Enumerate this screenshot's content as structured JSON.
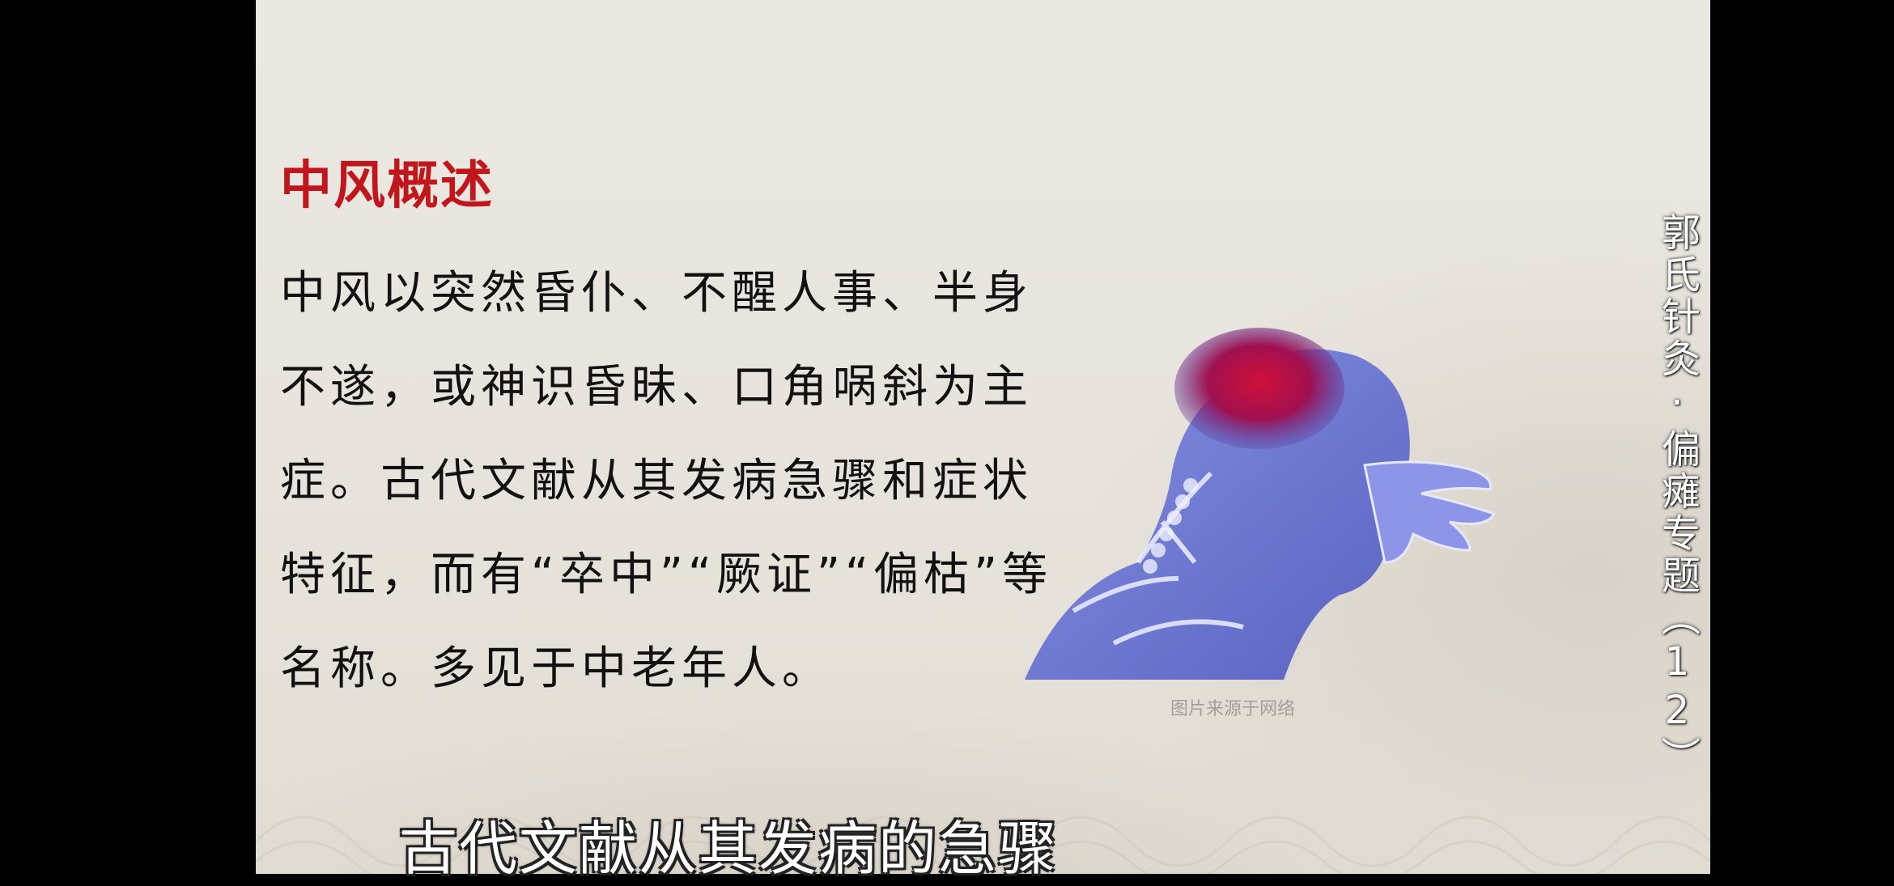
{
  "slide": {
    "title": "中风概述",
    "body": "中风以突然昏仆、不醒人事、半身不遂，或神识昏昧、口角㖞斜为主症。古代文献从其发病急骤和症状特征，而有“卒中”“厥证”“偏枯”等名称。多见于中老年人。",
    "image_credit": "图片来源于网络",
    "image_icon": "head-pain-xray-icon"
  },
  "series_title": "郭氏针灸·偏瘫专题（12）",
  "subtitle": "古代文献从其发病的急骤",
  "colors": {
    "title": "#c0161c",
    "body": "#111111",
    "background": "#e8e4dd",
    "letterbox": "#000000"
  }
}
